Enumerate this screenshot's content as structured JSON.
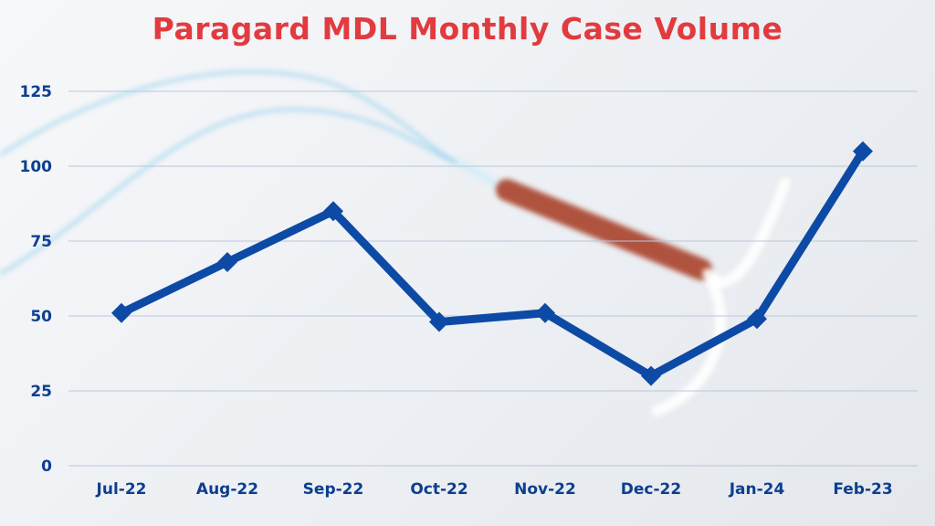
{
  "chart_data": {
    "type": "line",
    "title": "Paragard MDL Monthly Case Volume",
    "xlabel": "",
    "ylabel": "",
    "categories": [
      "Jul-22",
      "Aug-22",
      "Sep-22",
      "Oct-22",
      "Nov-22",
      "Dec-22",
      "Jan-24",
      "Feb-23"
    ],
    "series": [
      {
        "name": "Case Volume",
        "values": [
          51,
          68,
          85,
          48,
          51,
          30,
          49,
          105
        ]
      }
    ],
    "ylim": [
      0,
      125
    ],
    "yticks": [
      0,
      25,
      50,
      75,
      100,
      125
    ],
    "grid": true,
    "colors": {
      "line": "#0d4aa6",
      "title": "#e23b3f",
      "ticks": "#0d3f8f",
      "grid": "#b9c7dc"
    }
  }
}
